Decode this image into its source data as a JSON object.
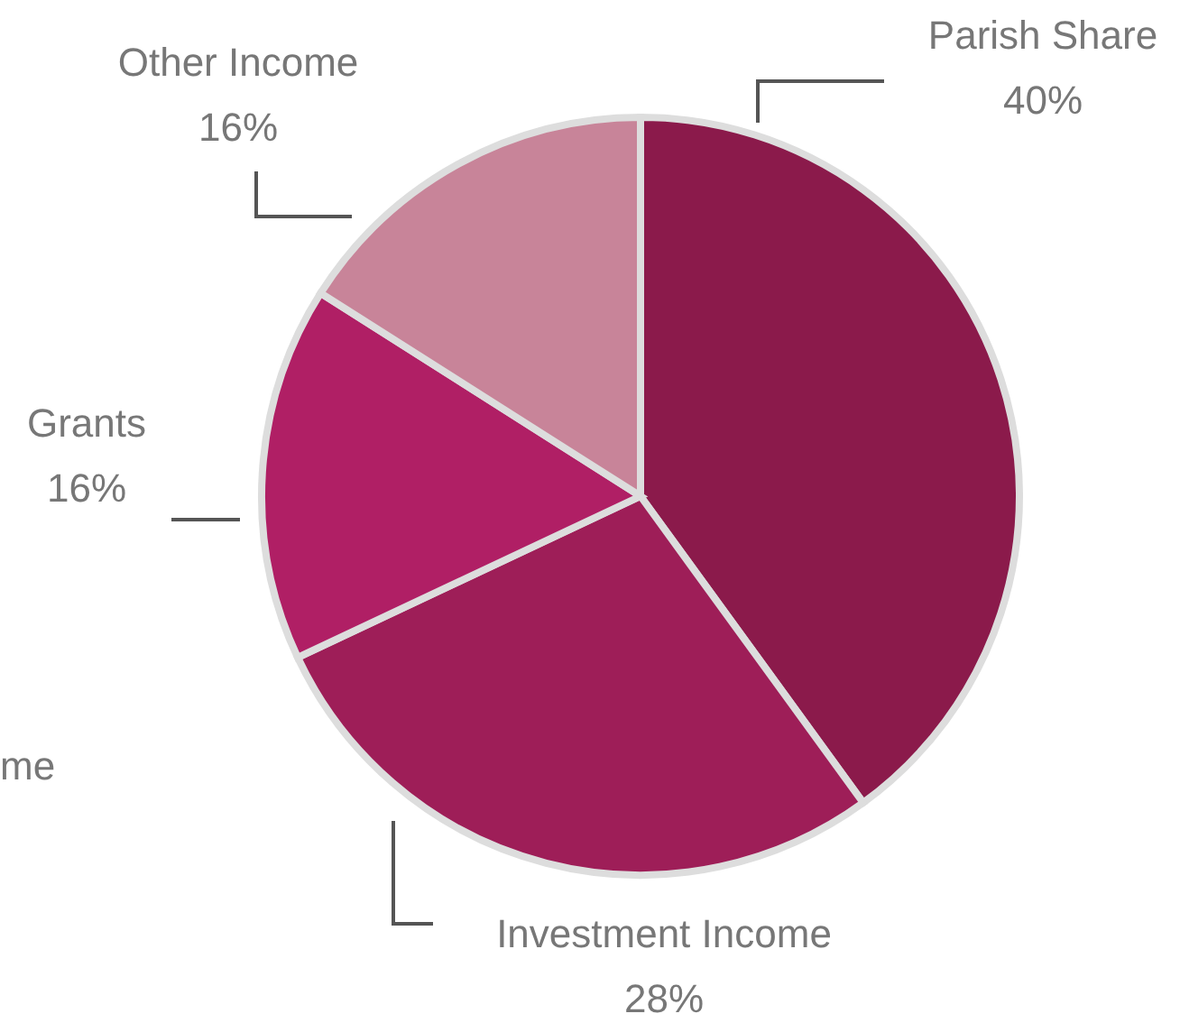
{
  "chart_data": {
    "type": "pie",
    "categories": [
      "Parish Share",
      "Investment Income",
      "Grants",
      "Other Income"
    ],
    "values": [
      40,
      28,
      16,
      16
    ],
    "value_labels": [
      "40%",
      "28%",
      "16%",
      "16%"
    ],
    "colors": [
      "#8b1a4b",
      "#9e1e58",
      "#b01f65",
      "#c88499"
    ],
    "annotations": [
      "me"
    ],
    "legend": false
  }
}
